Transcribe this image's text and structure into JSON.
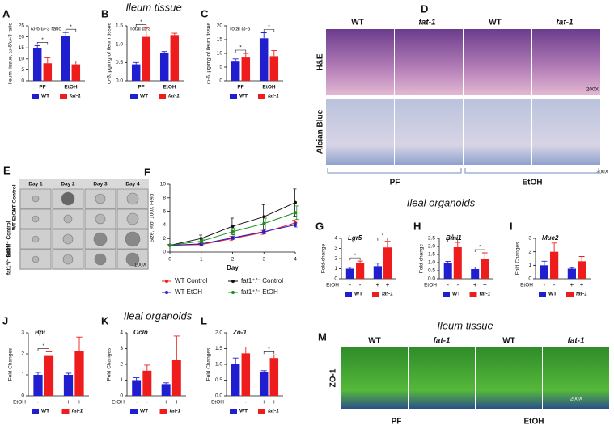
{
  "headers": [
    "Ileum tissue",
    "Ileal organoids",
    "Ileal organoids",
    "Ileum tissue"
  ],
  "panel_d": {
    "panel": "D",
    "columns": [
      "WT",
      "fat-1",
      "WT",
      "fat-1"
    ],
    "rows": [
      "H&E",
      "Alcian Blue"
    ],
    "magnifications": [
      "200X",
      "200X"
    ],
    "groups": [
      "PF",
      "EtOH"
    ]
  },
  "panel_e": {
    "panel": "E",
    "days": [
      "Day 1",
      "Day 2",
      "Day 3",
      "Day 4"
    ],
    "rows": [
      "WT Control",
      "WT EtOH",
      "fat1⁺/⁻ Control",
      "fat1⁺/⁻ EtOH"
    ],
    "magnification": "100X"
  },
  "panel_m": {
    "panel": "M",
    "columns": [
      "WT",
      "fat-1",
      "WT",
      "fat-1"
    ],
    "row": "ZO-1",
    "magnification": "200X",
    "groups": [
      "PF",
      "EtOH"
    ]
  },
  "chart_data": [
    {
      "panel": "A",
      "type": "bar",
      "title": "ω-6:ω-3 ratio",
      "ylabel": "Ileum tissue, ω-6/ω-3 ratio",
      "categories": [
        "PF",
        "EtOH"
      ],
      "series": [
        {
          "name": "WT",
          "color": "#1f1fd0",
          "values": [
            15,
            20.5
          ],
          "errors": [
            1,
            1.5
          ]
        },
        {
          "name": "fat-1",
          "color": "#ee1c1c",
          "values": [
            8,
            7.5
          ],
          "errors": [
            2.5,
            1.5
          ]
        }
      ],
      "ylim": [
        0,
        25
      ],
      "yticks": [
        0,
        5,
        10,
        15,
        20,
        25
      ],
      "significance": [
        "*",
        "*"
      ]
    },
    {
      "panel": "B",
      "type": "bar",
      "title": "Total ω-3",
      "ylabel": "ω-3, μg/mg of ileum tissue",
      "categories": [
        "PF",
        "EtOH"
      ],
      "series": [
        {
          "name": "WT",
          "color": "#1f1fd0",
          "values": [
            0.45,
            0.75
          ],
          "errors": [
            0.05,
            0.05
          ]
        },
        {
          "name": "fat-1",
          "color": "#ee1c1c",
          "values": [
            1.2,
            1.25
          ],
          "errors": [
            0.25,
            0.05
          ]
        }
      ],
      "ylim": [
        0,
        1.5
      ],
      "yticks": [
        {
          "value": 0,
          "label": "0.0"
        },
        0.5,
        {
          "value": 1,
          "label": "1.0"
        },
        1.5
      ],
      "significance": [
        "*",
        null
      ]
    },
    {
      "panel": "C",
      "type": "bar",
      "title": "Total ω-6",
      "ylabel": "ω-6, μg/mg of ileum tissue",
      "categories": [
        "PF",
        "EtOH"
      ],
      "series": [
        {
          "name": "WT",
          "color": "#1f1fd0",
          "values": [
            7,
            15.5
          ],
          "errors": [
            1,
            2
          ]
        },
        {
          "name": "fat-1",
          "color": "#ee1c1c",
          "values": [
            8.5,
            9
          ],
          "errors": [
            1.5,
            2
          ]
        }
      ],
      "ylim": [
        0,
        20
      ],
      "yticks": [
        0,
        5,
        10,
        15,
        20
      ],
      "significance": [
        "*",
        "*"
      ]
    },
    {
      "panel": "F",
      "type": "line",
      "ylabel": "Size, %of 100X Field",
      "xlabel": "Day",
      "x": [
        0,
        1,
        2,
        3,
        4
      ],
      "series": [
        {
          "name": "WT Control",
          "color": "#ee1c1c",
          "values": [
            1,
            1.1,
            2,
            2.9,
            4.3
          ],
          "errors": [
            0.1,
            0.2,
            0.3,
            0.3,
            0.4
          ]
        },
        {
          "name": "fat1⁺/⁻ Control",
          "color": "#111111",
          "values": [
            1,
            2,
            3.8,
            5.2,
            7.3
          ],
          "errors": [
            0.1,
            0.5,
            1.2,
            1.8,
            2
          ]
        },
        {
          "name": "WT EtOH",
          "color": "#1f1fd0",
          "values": [
            1,
            1.2,
            2.1,
            3,
            4
          ],
          "errors": [
            0.1,
            0.2,
            0.2,
            0.3,
            0.3
          ]
        },
        {
          "name": "fat1⁺/⁻ EtOH",
          "color": "#1a8f1a",
          "values": [
            1,
            1.6,
            3,
            4.2,
            5.8
          ],
          "errors": [
            0.1,
            0.3,
            0.5,
            0.8,
            1
          ]
        }
      ],
      "xlim": [
        0,
        4
      ],
      "xticks": [
        0,
        1,
        2,
        3,
        4
      ],
      "ylim": [
        0,
        10
      ],
      "yticks": [
        0,
        2,
        4,
        6,
        8,
        10
      ]
    },
    {
      "panel": "G",
      "type": "bar",
      "title": "Lgr5",
      "ylabel": "Fold-change",
      "x_row_label": "EtOH",
      "bar_labels": [
        "-",
        "-",
        "+",
        "+"
      ],
      "series": [
        {
          "name": "WT",
          "color": "#1f1fd0",
          "values": [
            1,
            1.25
          ],
          "errors": [
            0.15,
            0.3
          ]
        },
        {
          "name": "fat-1",
          "color": "#ee1c1c",
          "values": [
            1.6,
            3.1
          ],
          "errors": [
            0.15,
            0.6
          ]
        }
      ],
      "ylim": [
        0,
        4
      ],
      "yticks": [
        0,
        1,
        2,
        3,
        4
      ],
      "significance": [
        "*",
        "*"
      ]
    },
    {
      "panel": "H",
      "type": "bar",
      "title": "Bmi1",
      "ylabel": "Fold-change",
      "x_row_label": "EtOH",
      "bar_labels": [
        "-",
        "-",
        "+",
        "+"
      ],
      "series": [
        {
          "name": "WT",
          "color": "#1f1fd0",
          "values": [
            1,
            0.6
          ],
          "errors": [
            0.08,
            0.12
          ]
        },
        {
          "name": "fat-1",
          "color": "#ee1c1c",
          "values": [
            1.95,
            1.2
          ],
          "errors": [
            0.3,
            0.4
          ]
        }
      ],
      "ylim": [
        0,
        2.5
      ],
      "yticks": [
        {
          "value": 0,
          "label": "0.0"
        },
        0.5,
        {
          "value": 1,
          "label": "1.0"
        },
        1.5,
        {
          "value": 2,
          "label": "2.0"
        },
        2.5
      ],
      "significance": [
        "*",
        "*"
      ]
    },
    {
      "panel": "I",
      "type": "bar",
      "title": "Muc2",
      "ylabel": "Fold Changes",
      "x_row_label": "EtOH",
      "bar_labels": [
        "-",
        "-",
        "+",
        "+"
      ],
      "series": [
        {
          "name": "WT",
          "color": "#1f1fd0",
          "values": [
            1,
            0.75
          ],
          "errors": [
            0.3,
            0.08
          ]
        },
        {
          "name": "fat-1",
          "color": "#ee1c1c",
          "values": [
            2,
            1.3
          ],
          "errors": [
            0.65,
            0.35
          ]
        }
      ],
      "ylim": [
        0,
        3
      ],
      "yticks": [
        0,
        1,
        2,
        3
      ],
      "significance": []
    },
    {
      "panel": "J",
      "type": "bar",
      "title": "Bpi",
      "ylabel": "Fold Changes",
      "x_row_label": "EtOH",
      "bar_labels": [
        "-",
        "-",
        "+",
        "+"
      ],
      "series": [
        {
          "name": "WT",
          "color": "#1f1fd0",
          "values": [
            1,
            1
          ],
          "errors": [
            0.12,
            0.08
          ]
        },
        {
          "name": "fat-1",
          "color": "#ee1c1c",
          "values": [
            1.9,
            2.15
          ],
          "errors": [
            0.2,
            0.65
          ]
        }
      ],
      "ylim": [
        0,
        3
      ],
      "yticks": [
        0,
        1,
        2,
        3
      ],
      "significance": [
        "*",
        null
      ]
    },
    {
      "panel": "K",
      "type": "bar",
      "title": "Ocln",
      "ylabel": "Fold Changes",
      "x_row_label": "EtOH",
      "bar_labels": [
        "-",
        "-",
        "+",
        "+"
      ],
      "series": [
        {
          "name": "WT",
          "color": "#1f1fd0",
          "values": [
            1,
            0.75
          ],
          "errors": [
            0.15,
            0.08
          ]
        },
        {
          "name": "fat-1",
          "color": "#ee1c1c",
          "values": [
            1.6,
            2.3
          ],
          "errors": [
            0.35,
            1.5
          ]
        }
      ],
      "ylim": [
        0,
        4
      ],
      "yticks": [
        0,
        1,
        2,
        3,
        4
      ],
      "significance": []
    },
    {
      "panel": "L",
      "type": "bar",
      "title": "Zo-1",
      "ylabel": "Fold Changes",
      "x_row_label": "EtOH",
      "bar_labels": [
        "-",
        "-",
        "+",
        "+"
      ],
      "series": [
        {
          "name": "WT",
          "color": "#1f1fd0",
          "values": [
            1,
            0.75
          ],
          "errors": [
            0.2,
            0.05
          ]
        },
        {
          "name": "fat-1",
          "color": "#ee1c1c",
          "values": [
            1.35,
            1.2
          ],
          "errors": [
            0.2,
            0.1
          ]
        }
      ],
      "ylim": [
        0,
        2
      ],
      "yticks": [
        {
          "value": 0,
          "label": "0.0"
        },
        0.5,
        {
          "value": 1,
          "label": "1.0"
        },
        1.5,
        {
          "value": 2,
          "label": "2.0"
        }
      ],
      "significance": [
        null,
        "*"
      ]
    }
  ]
}
